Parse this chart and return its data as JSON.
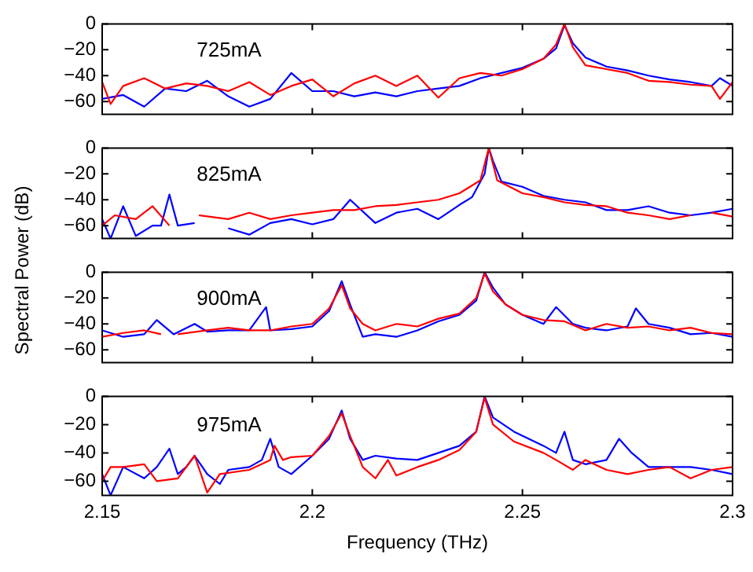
{
  "chart_data": [
    {
      "type": "line",
      "annotations": [
        "725mA"
      ],
      "xlim": [
        2.15,
        2.3
      ],
      "xticks": [
        2.15,
        2.2,
        2.25,
        2.3
      ],
      "ylim": [
        -70,
        0
      ],
      "yticks": [
        0,
        -20,
        -40,
        -60
      ],
      "grid": false,
      "legend": false,
      "marker": "none",
      "line_style": "solid",
      "tick_labels": "y",
      "series": [
        {
          "color": "#0000ff",
          "x": [
            2.15,
            2.155,
            2.16,
            2.165,
            2.17,
            2.175,
            2.18,
            2.185,
            2.19,
            2.195,
            2.2,
            2.205,
            2.21,
            2.215,
            2.22,
            2.225,
            2.23,
            2.235,
            2.24,
            2.245,
            2.25,
            2.255,
            2.258,
            2.26,
            2.262,
            2.265,
            2.27,
            2.275,
            2.28,
            2.285,
            2.29,
            2.295,
            2.297,
            2.3
          ],
          "values": [
            -58,
            -55,
            -64,
            -50,
            -52,
            -44,
            -56,
            -64,
            -58,
            -38,
            -52,
            -52,
            -56,
            -53,
            -56,
            -52,
            -50,
            -48,
            -42,
            -38,
            -34,
            -27,
            -19,
            -1,
            -15,
            -26,
            -33,
            -36,
            -40,
            -43,
            -45,
            -48,
            -42,
            -48
          ]
        },
        {
          "color": "#ff0000",
          "x": [
            2.15,
            2.152,
            2.155,
            2.16,
            2.165,
            2.17,
            2.175,
            2.18,
            2.185,
            2.19,
            2.195,
            2.2,
            2.205,
            2.21,
            2.215,
            2.22,
            2.225,
            2.23,
            2.235,
            2.24,
            2.245,
            2.25,
            2.255,
            2.258,
            2.26,
            2.262,
            2.265,
            2.27,
            2.275,
            2.28,
            2.285,
            2.29,
            2.295,
            2.297,
            2.3
          ],
          "values": [
            -45,
            -62,
            -48,
            -42,
            -50,
            -46,
            -48,
            -52,
            -45,
            -55,
            -48,
            -43,
            -56,
            -46,
            -40,
            -48,
            -40,
            -57,
            -42,
            -38,
            -40,
            -35,
            -27,
            -16,
            0,
            -18,
            -32,
            -35,
            -38,
            -44,
            -45,
            -47,
            -48,
            -58,
            -45
          ]
        }
      ]
    },
    {
      "type": "line",
      "annotations": [
        "825mA"
      ],
      "ylabel": "Spectral Power (dB)",
      "xlim": [
        2.15,
        2.3
      ],
      "xticks": [
        2.15,
        2.2,
        2.25,
        2.3
      ],
      "ylim": [
        -70,
        0
      ],
      "yticks": [
        0,
        -20,
        -40,
        -60
      ],
      "grid": false,
      "legend": false,
      "marker": "none",
      "line_style": "solid",
      "tick_labels": "y",
      "series": [
        {
          "color": "#0000ff",
          "x": [
            2.15,
            2.152,
            2.155,
            2.158,
            2.162,
            2.164,
            2.166,
            2.168,
            2.172,
            2.175,
            2.18,
            2.185,
            2.19,
            2.195,
            2.2,
            2.205,
            2.209,
            2.215,
            2.22,
            2.225,
            2.23,
            2.235,
            2.238,
            2.241,
            2.242,
            2.243,
            2.245,
            2.25,
            2.255,
            2.26,
            2.265,
            2.27,
            2.275,
            2.28,
            2.285,
            2.29,
            2.295,
            2.3
          ],
          "values": [
            -55,
            -70,
            -45,
            -68,
            -60,
            -60,
            -36,
            -60,
            -58,
            null,
            -62,
            -67,
            -58,
            -55,
            -59,
            -55,
            -40,
            -58,
            -50,
            -47,
            -55,
            -44,
            -38,
            -20,
            0,
            -10,
            -26,
            -30,
            -37,
            -40,
            -42,
            -48,
            -48,
            -45,
            -50,
            -52,
            -50,
            -47
          ]
        },
        {
          "color": "#ff0000",
          "x": [
            2.15,
            2.153,
            2.158,
            2.162,
            2.166,
            2.17,
            2.173,
            2.18,
            2.185,
            2.19,
            2.195,
            2.2,
            2.205,
            2.21,
            2.215,
            2.22,
            2.225,
            2.23,
            2.235,
            2.24,
            2.242,
            2.244,
            2.247,
            2.25,
            2.255,
            2.26,
            2.265,
            2.27,
            2.275,
            2.28,
            2.285,
            2.29,
            2.292,
            2.295,
            2.3
          ],
          "values": [
            -60,
            -52,
            -55,
            -45,
            -60,
            null,
            -52,
            -55,
            -50,
            -55,
            -52,
            -50,
            -48,
            -48,
            -45,
            -44,
            -42,
            -40,
            -35,
            -25,
            0,
            -25,
            -30,
            -35,
            -38,
            -42,
            -44,
            -45,
            -50,
            -52,
            -55,
            -52,
            null,
            -50,
            -53
          ]
        }
      ]
    },
    {
      "type": "line",
      "annotations": [
        "900mA"
      ],
      "xlim": [
        2.15,
        2.3
      ],
      "xticks": [
        2.15,
        2.2,
        2.25,
        2.3
      ],
      "ylim": [
        -70,
        0
      ],
      "yticks": [
        0,
        -20,
        -40,
        -60
      ],
      "grid": false,
      "legend": false,
      "marker": "none",
      "line_style": "solid",
      "tick_labels": "y",
      "series": [
        {
          "color": "#0000ff",
          "x": [
            2.15,
            2.155,
            2.16,
            2.163,
            2.167,
            2.172,
            2.175,
            2.18,
            2.185,
            2.189,
            2.19,
            2.195,
            2.2,
            2.204,
            2.207,
            2.209,
            2.212,
            2.215,
            2.22,
            2.225,
            2.23,
            2.235,
            2.239,
            2.241,
            2.243,
            2.246,
            2.25,
            2.255,
            2.258,
            2.262,
            2.265,
            2.27,
            2.275,
            2.277,
            2.28,
            2.285,
            2.29,
            2.295,
            2.3
          ],
          "values": [
            -45,
            -50,
            -48,
            -37,
            -48,
            -40,
            -46,
            -45,
            -45,
            -27,
            -45,
            -44,
            -42,
            -30,
            -7,
            -25,
            -50,
            -48,
            -50,
            -45,
            -38,
            -33,
            -22,
            0,
            -12,
            -25,
            -33,
            -40,
            -27,
            -40,
            -43,
            -45,
            -42,
            -28,
            -40,
            -43,
            -48,
            -47,
            -50
          ]
        },
        {
          "color": "#ff0000",
          "x": [
            2.15,
            2.155,
            2.16,
            2.164,
            2.166,
            2.168,
            2.175,
            2.18,
            2.185,
            2.19,
            2.195,
            2.2,
            2.204,
            2.207,
            2.209,
            2.212,
            2.215,
            2.22,
            2.225,
            2.23,
            2.235,
            2.239,
            2.241,
            2.243,
            2.246,
            2.25,
            2.255,
            2.26,
            2.265,
            2.27,
            2.275,
            2.28,
            2.285,
            2.29,
            2.295,
            2.3
          ],
          "values": [
            -50,
            -47,
            -45,
            -48,
            null,
            -48,
            -45,
            -43,
            -45,
            -45,
            -42,
            -40,
            -28,
            -10,
            -28,
            -40,
            -45,
            -40,
            -42,
            -36,
            -32,
            -20,
            -1,
            -15,
            -25,
            -33,
            -37,
            -38,
            -45,
            -40,
            -43,
            -42,
            -45,
            -43,
            -47,
            -48
          ]
        }
      ]
    },
    {
      "type": "line",
      "annotations": [
        "975mA"
      ],
      "xlabel": "Frequency (THz)",
      "xlim": [
        2.15,
        2.3
      ],
      "xticks": [
        2.15,
        2.2,
        2.25,
        2.3
      ],
      "ylim": [
        -70,
        0
      ],
      "yticks": [
        0,
        -20,
        -40,
        -60
      ],
      "grid": false,
      "legend": false,
      "marker": "none",
      "line_style": "solid",
      "series": [
        {
          "color": "#0000ff",
          "x": [
            2.15,
            2.152,
            2.155,
            2.16,
            2.163,
            2.166,
            2.168,
            2.17,
            2.172,
            2.175,
            2.178,
            2.18,
            2.185,
            2.188,
            2.19,
            2.192,
            2.195,
            2.2,
            2.204,
            2.207,
            2.209,
            2.212,
            2.215,
            2.22,
            2.225,
            2.23,
            2.235,
            2.239,
            2.241,
            2.243,
            2.248,
            2.255,
            2.258,
            2.26,
            2.262,
            2.265,
            2.27,
            2.273,
            2.276,
            2.28,
            2.285,
            2.29,
            2.295,
            2.3
          ],
          "values": [
            -55,
            -70,
            -50,
            -58,
            -50,
            -37,
            -55,
            -50,
            -42,
            -55,
            -62,
            -52,
            -50,
            -45,
            -30,
            -50,
            -55,
            -42,
            -30,
            -10,
            -30,
            -45,
            -42,
            -44,
            -45,
            -40,
            -35,
            -25,
            0,
            -15,
            -25,
            -35,
            -40,
            -25,
            -45,
            -48,
            -45,
            -30,
            -40,
            -50,
            -50,
            -50,
            -52,
            -55
          ]
        },
        {
          "color": "#ff0000",
          "x": [
            2.15,
            2.152,
            2.155,
            2.16,
            2.163,
            2.168,
            2.172,
            2.175,
            2.178,
            2.185,
            2.19,
            2.191,
            2.193,
            2.195,
            2.2,
            2.204,
            2.207,
            2.209,
            2.212,
            2.215,
            2.218,
            2.22,
            2.225,
            2.23,
            2.235,
            2.239,
            2.241,
            2.243,
            2.248,
            2.255,
            2.258,
            2.262,
            2.265,
            2.27,
            2.275,
            2.28,
            2.285,
            2.29,
            2.295,
            2.3
          ],
          "values": [
            -60,
            -50,
            -50,
            -48,
            -60,
            -58,
            -42,
            -68,
            -55,
            -52,
            -45,
            -35,
            -45,
            -43,
            -42,
            -28,
            -12,
            -28,
            -50,
            -58,
            -45,
            -56,
            -50,
            -45,
            -38,
            -25,
            -1,
            -20,
            -32,
            -40,
            -45,
            -52,
            -45,
            -52,
            -55,
            -52,
            -50,
            -58,
            -52,
            -50
          ]
        }
      ]
    }
  ]
}
